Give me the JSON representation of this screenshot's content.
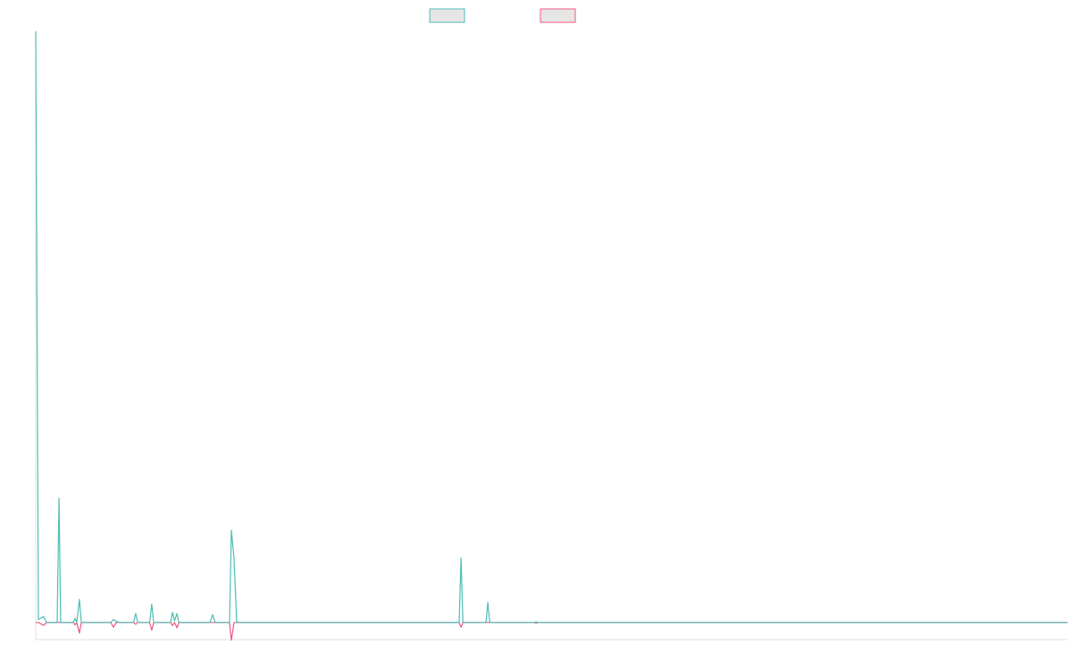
{
  "chart_data": {
    "type": "line",
    "x": [
      0,
      1,
      3,
      4,
      8,
      8.7,
      9.3,
      14,
      14.7,
      15.3,
      16.3,
      17,
      28,
      29,
      30,
      31,
      36.5,
      37.3,
      38,
      42.5,
      43.3,
      44,
      50.3,
      51,
      51.8,
      52.7,
      53.4,
      65,
      66,
      67,
      72.3,
      73,
      74,
      75,
      158,
      158.7,
      159.4,
      168,
      168.7,
      169.4,
      186,
      186.7,
      187.4,
      385
    ],
    "xlim": [
      0,
      385
    ],
    "ylim": [
      -2.9,
      100
    ],
    "series": [
      {
        "color": "#4dbdb5",
        "values": [
          100,
          0.5,
          1,
          0,
          0,
          21,
          0,
          0,
          0.7,
          0,
          3.9,
          0,
          0,
          0.5,
          0.2,
          0,
          0,
          1.5,
          0,
          0,
          3.1,
          0,
          0,
          1.7,
          0.3,
          1.5,
          0,
          0,
          1.3,
          0,
          0,
          15.6,
          10.7,
          0,
          0,
          10.9,
          0,
          0,
          3.4,
          0,
          0,
          0.1,
          0,
          0
        ]
      },
      {
        "color": "#f0577e",
        "values": [
          0,
          0,
          -0.5,
          0,
          0,
          0,
          0,
          0,
          -0.4,
          0,
          -1.8,
          0,
          0,
          -0.8,
          0,
          0,
          0,
          -0.3,
          0,
          0,
          -1.3,
          0,
          0,
          -0.5,
          0,
          -0.9,
          0,
          0,
          0,
          0,
          0,
          -3,
          0,
          0,
          0,
          -0.8,
          0,
          0,
          0,
          0,
          0,
          -0.1,
          0,
          0
        ]
      }
    ]
  }
}
